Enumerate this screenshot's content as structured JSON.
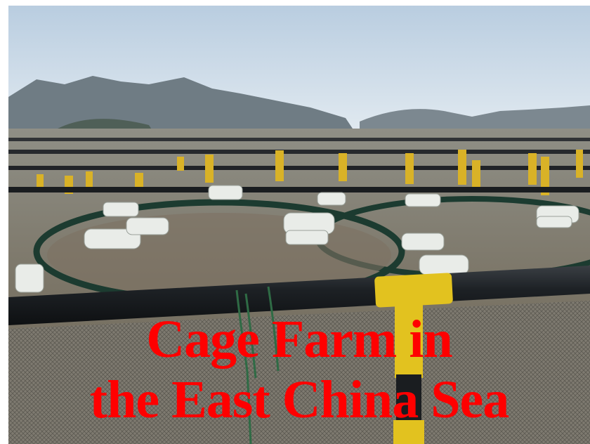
{
  "caption": {
    "line1": "Cage Farm in",
    "line2": "the East China Sea",
    "color": "#ff0000"
  }
}
